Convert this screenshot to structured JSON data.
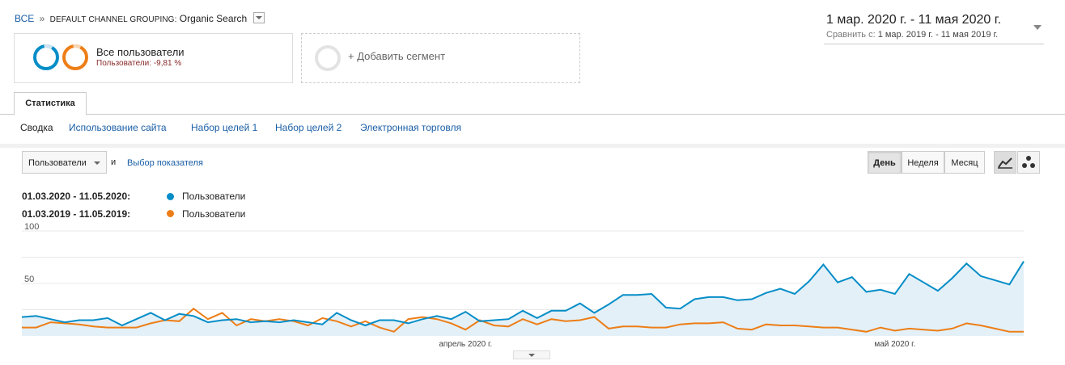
{
  "breadcrumb": {
    "all": "ВСЕ",
    "sep": "»",
    "grouping": "DEFAULT CHANNEL GROUPING:",
    "value": "Organic Search"
  },
  "segments": {
    "primary_name": "Все пользователи",
    "primary_sub": "Пользователи: -9,81 %",
    "add_label": "+ Добавить сегмент"
  },
  "date_range": {
    "main": "1 мар. 2020 г. - 11 мая 2020 г.",
    "compare_label": "Сравнить с:",
    "compare_value": "1 мар. 2019 г. - 11 мая 2019 г."
  },
  "tabs": {
    "active": "Статистика"
  },
  "subnav": [
    "Сводка",
    "Использование сайта",
    "Набор целей 1",
    "Набор целей 2",
    "Электронная торговля"
  ],
  "controls": {
    "metric_select": "Пользователи",
    "and_label": "и",
    "pick_metric": "Выбор показателя",
    "granularity": [
      "День",
      "Неделя",
      "Месяц"
    ],
    "active_granularity": "День"
  },
  "colors": {
    "current": "#058dc7",
    "previous": "#ed7e17",
    "area": "#e3f0f8",
    "link": "#1a5ea6"
  },
  "chart_data": {
    "type": "line",
    "ylim": [
      0,
      100
    ],
    "yticks": [
      "100",
      "50"
    ],
    "xtick_labels": [
      "апрель 2020 г.",
      "май 2020 г."
    ],
    "grid": true,
    "series": [
      {
        "name": "Пользователи",
        "period": "01.03.2020 - 11.05.2020:",
        "values": [
          18,
          19,
          16,
          13,
          15,
          15,
          17,
          10,
          16,
          22,
          15,
          21,
          19,
          13,
          15,
          16,
          13,
          14,
          13,
          15,
          13,
          11,
          22,
          15,
          10,
          15,
          15,
          12,
          16,
          19,
          16,
          23,
          14,
          15,
          16,
          24,
          17,
          24,
          24,
          31,
          22,
          30,
          39,
          39,
          40,
          27,
          26,
          35,
          37,
          37,
          34,
          35,
          41,
          45,
          40,
          52,
          68,
          51,
          56,
          42,
          44,
          40,
          59,
          51,
          43,
          55,
          69,
          57,
          53,
          49,
          71
        ]
      },
      {
        "name": "Пользователи",
        "period": "01.03.2019 - 11.05.2019:",
        "values": [
          8,
          8,
          13,
          12,
          11,
          9,
          8,
          8,
          8,
          12,
          15,
          14,
          26,
          16,
          22,
          10,
          16,
          14,
          16,
          14,
          10,
          17,
          14,
          9,
          14,
          8,
          4,
          16,
          18,
          16,
          12,
          6,
          15,
          10,
          9,
          16,
          11,
          16,
          14,
          15,
          18,
          7,
          9,
          9,
          8,
          8,
          11,
          12,
          12,
          13,
          7,
          6,
          11,
          10,
          10,
          9,
          8,
          8,
          6,
          4,
          8,
          5,
          7,
          6,
          5,
          7,
          12,
          10,
          7,
          4,
          4
        ]
      }
    ]
  }
}
